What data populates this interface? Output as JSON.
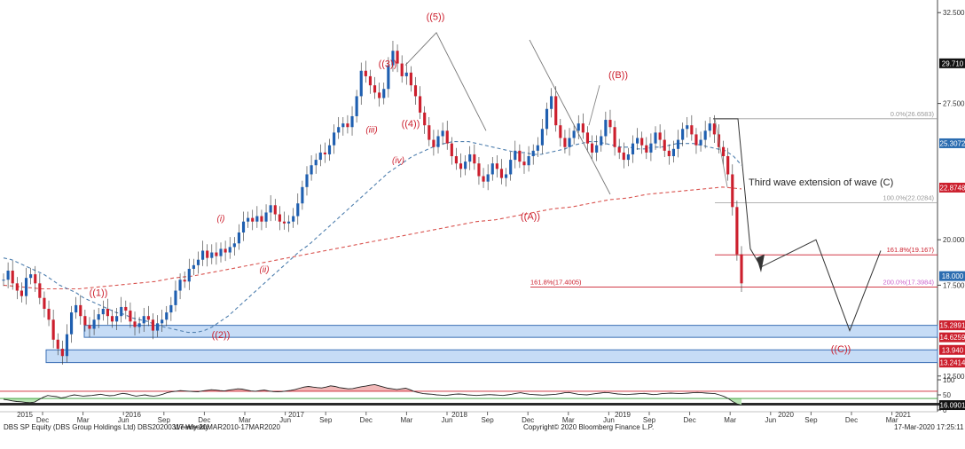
{
  "chart_data": {
    "type": "candlestick",
    "instrument_caption": "DBS SP Equity (DBS Group Holdings Ltd) DBS20200317 Weekly",
    "period_caption": "Weekly 20MAR2010-17MAR2020",
    "copyright": "Copyright© 2020 Bloomberg Finance L.P.",
    "timestamp": "17-Mar-2020 17:25:11",
    "y_axis": {
      "range": [
        12.0,
        33.0
      ],
      "ticks": [
        "32.500",
        "27.500",
        "20.000",
        "17.500",
        "12.500"
      ]
    },
    "x_axis": {
      "month_ticks": [
        "Dec",
        "Mar",
        "Jun",
        "Sep",
        "Dec",
        "Mar",
        "Jun",
        "Sep",
        "Dec",
        "Mar",
        "Jun",
        "Sep",
        "Dec",
        "Mar",
        "Jun",
        "Sep",
        "Dec",
        "Mar",
        "Jun",
        "Sep",
        "Dec",
        "Mar"
      ],
      "year_labels": [
        "2015",
        "2016",
        "2017",
        "2018",
        "2019",
        "2020",
        "2021"
      ]
    },
    "price_badges": [
      {
        "value": "29.710",
        "color": "#111111"
      },
      {
        "value": "25.3072",
        "color": "#2b6cb0"
      },
      {
        "value": "22.8748",
        "color": "#cc1f2d"
      },
      {
        "value": "18.000",
        "color": "#2b6cb0"
      },
      {
        "value": "15.2891",
        "color": "#cc1f2d"
      },
      {
        "value": "14.6259",
        "color": "#cc1f2d"
      },
      {
        "value": "13.940",
        "color": "#cc1f2d"
      },
      {
        "value": "13.2414",
        "color": "#cc1f2d"
      }
    ],
    "fib_labels": [
      {
        "text": "0.0%(26.6583)",
        "color": "#999999"
      },
      {
        "text": "100.0%(22.0284)",
        "color": "#999999"
      },
      {
        "text": "161.8%(19.167)",
        "color": "#cc1f2d"
      },
      {
        "text": "161.8%(17.4005)",
        "color": "#cc1f2d"
      },
      {
        "text": "200.0%(17.3984)",
        "color": "#cc66cc"
      }
    ],
    "wave_labels": [
      "((1))",
      "((2))",
      "(i)",
      "(ii)",
      "(iii)",
      "(iv)",
      "((3))",
      "((4))",
      "((5))",
      "((A))",
      "((B))",
      "((C))"
    ],
    "annotation": "Third wave extension of wave (C)",
    "close_weekly": [
      17.8,
      18.3,
      17.6,
      17.2,
      16.9,
      17.9,
      18.1,
      17.6,
      16.8,
      16.2,
      15.6,
      14.5,
      14.0,
      13.6,
      14.8,
      16.0,
      16.4,
      15.8,
      15.3,
      15.1,
      15.6,
      15.9,
      16.2,
      15.8,
      15.5,
      15.8,
      16.3,
      16.1,
      15.5,
      15.2,
      15.4,
      15.8,
      15.6,
      15.0,
      15.4,
      15.6,
      16.0,
      16.4,
      17.2,
      17.8,
      17.7,
      18.4,
      18.6,
      18.9,
      19.4,
      19.0,
      19.3,
      19.1,
      19.5,
      19.3,
      19.6,
      19.8,
      20.4,
      21.0,
      21.2,
      21.0,
      21.3,
      21.0,
      21.5,
      21.9,
      21.4,
      21.0,
      20.9,
      21.0,
      21.3,
      22.0,
      22.9,
      23.6,
      24.1,
      24.4,
      24.8,
      24.7,
      25.2,
      25.9,
      26.2,
      26.4,
      26.2,
      26.8,
      27.9,
      29.3,
      29.0,
      28.5,
      28.1,
      27.8,
      28.3,
      29.6,
      30.4,
      29.7,
      29.0,
      29.2,
      28.5,
      27.9,
      27.0,
      26.3,
      25.5,
      25.1,
      25.7,
      26.0,
      25.3,
      24.6,
      24.2,
      23.9,
      24.3,
      24.7,
      24.2,
      23.5,
      23.2,
      23.6,
      24.2,
      23.9,
      23.4,
      23.6,
      24.4,
      24.9,
      24.3,
      24.1,
      24.6,
      24.9,
      25.2,
      26.1,
      27.2,
      27.9,
      26.3,
      25.6,
      25.1,
      25.6,
      26.0,
      26.4,
      25.9,
      25.3,
      24.8,
      25.2,
      25.7,
      26.6,
      26.2,
      25.1,
      24.8,
      24.4,
      24.7,
      25.3,
      25.6,
      25.2,
      24.8,
      25.3,
      25.9,
      25.5,
      24.9,
      24.6,
      25.0,
      25.5,
      26.1,
      26.3,
      25.8,
      25.2,
      25.5,
      26.0,
      26.4,
      25.8,
      25.1,
      24.6,
      23.6,
      21.8,
      19.2,
      17.6
    ],
    "ma_short": [
      19.0,
      18.9,
      18.7,
      18.5,
      18.3,
      18.1,
      17.8,
      17.5,
      17.3,
      17.1,
      16.8,
      16.6,
      16.4,
      16.2,
      16.0,
      15.9,
      15.7,
      15.6,
      15.5,
      15.3,
      15.2,
      15.1,
      15.0,
      14.9,
      14.9,
      15.0,
      15.2,
      15.5,
      15.8,
      16.2,
      16.6,
      17.0,
      17.4,
      17.8,
      18.2,
      18.6,
      19.0,
      19.4,
      19.7,
      20.1,
      20.5,
      20.9,
      21.3,
      21.7,
      22.1,
      22.5,
      22.9,
      23.3,
      23.7,
      24.0,
      24.3,
      24.6,
      24.8,
      25.0,
      25.2,
      25.3,
      25.4,
      25.4,
      25.4,
      25.3,
      25.2,
      25.1,
      25.0,
      24.9,
      24.8,
      24.8,
      24.7,
      24.7,
      24.8,
      24.9,
      25.0,
      25.2,
      25.3,
      25.4,
      25.4,
      25.3,
      25.2,
      25.1,
      25.1,
      25.0,
      25.0,
      25.1,
      25.1,
      25.2,
      25.3,
      25.3,
      25.3,
      25.2,
      25.1,
      25.0,
      24.9,
      24.6,
      24.1
    ],
    "ma_long": [
      17.5,
      17.4,
      17.3,
      17.3,
      17.3,
      17.4,
      17.5,
      17.6,
      17.7,
      17.9,
      18.0,
      18.2,
      18.4,
      18.6,
      18.8,
      19.0,
      19.2,
      19.4,
      19.6,
      19.8,
      20.0,
      20.2,
      20.4,
      20.6,
      20.8,
      21.0,
      21.1,
      21.3,
      21.5,
      21.7,
      21.8,
      22.0,
      22.2,
      22.3,
      22.5,
      22.6,
      22.7,
      22.8,
      22.9,
      22.8
    ],
    "oscillator": {
      "range": [
        0,
        100
      ],
      "upper": 62,
      "lower": 38,
      "ticks": [
        "100",
        "50",
        "0"
      ],
      "last_value": "16.0901",
      "values": [
        35,
        33,
        30,
        28,
        27,
        25,
        24,
        26,
        34,
        42,
        48,
        46,
        44,
        40,
        42,
        47,
        50,
        48,
        46,
        47,
        48,
        50,
        52,
        49,
        47,
        48,
        52,
        55,
        53,
        49,
        46,
        48,
        50,
        47,
        46,
        48,
        52,
        57,
        60,
        62,
        64,
        63,
        62,
        61,
        60,
        63,
        65,
        67,
        66,
        64,
        63,
        66,
        68,
        70,
        69,
        66,
        63,
        62,
        64,
        66,
        63,
        61,
        60,
        61,
        63,
        65,
        68,
        72,
        76,
        78,
        76,
        74,
        73,
        76,
        80,
        78,
        74,
        72,
        70,
        71,
        74,
        77,
        79,
        82,
        84,
        80,
        76,
        72,
        70,
        68,
        70,
        72,
        67,
        61,
        57,
        54,
        53,
        52,
        50,
        49,
        48,
        50,
        52,
        53,
        52,
        50,
        49,
        48,
        49,
        50,
        51,
        50,
        49,
        48,
        50,
        52,
        55,
        57,
        54,
        52,
        51,
        50,
        49,
        50,
        51,
        52,
        54,
        57,
        58,
        55,
        52,
        51,
        50,
        52,
        54,
        56,
        58,
        57,
        55,
        53,
        52,
        51,
        52,
        53,
        54,
        55,
        53,
        51,
        52,
        54,
        55,
        56,
        55,
        54,
        55,
        56,
        57,
        58,
        57,
        56,
        55,
        54,
        50,
        45,
        38,
        28,
        20,
        16
      ]
    }
  }
}
